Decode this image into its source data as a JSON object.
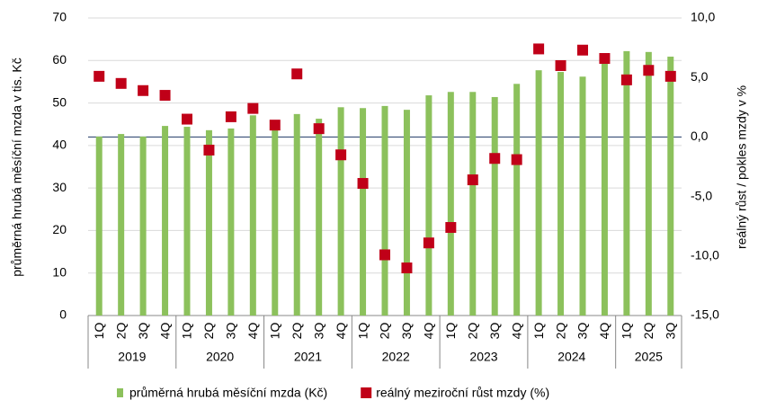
{
  "chart_data": {
    "type": "bar+scatter",
    "y_label": "průměrná hrubá měsíční mzda v tis. Kč",
    "y2_label": "reálný růst / pokles mzdy v %",
    "groups": [
      {
        "label": "2019",
        "categories": [
          "1Q",
          "2Q",
          "3Q",
          "4Q"
        ]
      },
      {
        "label": "2020",
        "categories": [
          "1Q",
          "2Q",
          "3Q",
          "4Q"
        ]
      },
      {
        "label": "2021",
        "categories": [
          "1Q",
          "2Q",
          "3Q",
          "4Q"
        ]
      },
      {
        "label": "2022",
        "categories": [
          "1Q",
          "2Q",
          "3Q",
          "4Q"
        ]
      },
      {
        "label": "2023",
        "categories": [
          "1Q",
          "2Q",
          "3Q",
          "4Q"
        ]
      },
      {
        "label": "2024",
        "categories": [
          "1Q",
          "2Q",
          "3Q",
          "4Q"
        ]
      },
      {
        "label": "2025",
        "categories": [
          "1Q",
          "2Q",
          "3Q"
        ]
      }
    ],
    "series": [
      {
        "name": "průměrná hrubá měsíční mzda (Kč)",
        "type": "bar",
        "color": "#8cc15c",
        "values": [
          42.1,
          42.7,
          42.1,
          44.6,
          44.4,
          43.6,
          44.0,
          47.1,
          44.0,
          47.4,
          46.3,
          49.0,
          48.8,
          49.3,
          48.4,
          51.8,
          52.6,
          52.6,
          51.4,
          54.5,
          57.7,
          57.3,
          56.2,
          60.7,
          62.2,
          62.0,
          60.9
        ]
      },
      {
        "name": "reálný meziroční růst mzdy (%)",
        "type": "scatter",
        "axis": "y2",
        "color": "#c00018",
        "values": [
          5.1,
          4.5,
          3.9,
          3.5,
          1.5,
          -1.1,
          1.7,
          2.4,
          1.0,
          5.3,
          0.7,
          -1.5,
          -3.9,
          -9.9,
          -11.0,
          -8.9,
          -7.6,
          -3.6,
          -1.8,
          -1.9,
          7.4,
          6.0,
          7.3,
          6.6,
          4.8,
          5.6,
          5.1
        ]
      }
    ],
    "ylim": [
      0,
      70
    ],
    "yticks": [
      0,
      10,
      20,
      30,
      40,
      50,
      60,
      70
    ],
    "y2lim": [
      -15,
      10
    ],
    "y2ticks": [
      {
        "value": -15,
        "label": "-15,0"
      },
      {
        "value": -10,
        "label": "-10,0"
      },
      {
        "value": -5,
        "label": "-5,0"
      },
      {
        "value": 0,
        "label": "0,0"
      },
      {
        "value": 5,
        "label": "5,0"
      },
      {
        "value": 10,
        "label": "10,0"
      }
    ],
    "grid": true,
    "legend": "bottom"
  }
}
